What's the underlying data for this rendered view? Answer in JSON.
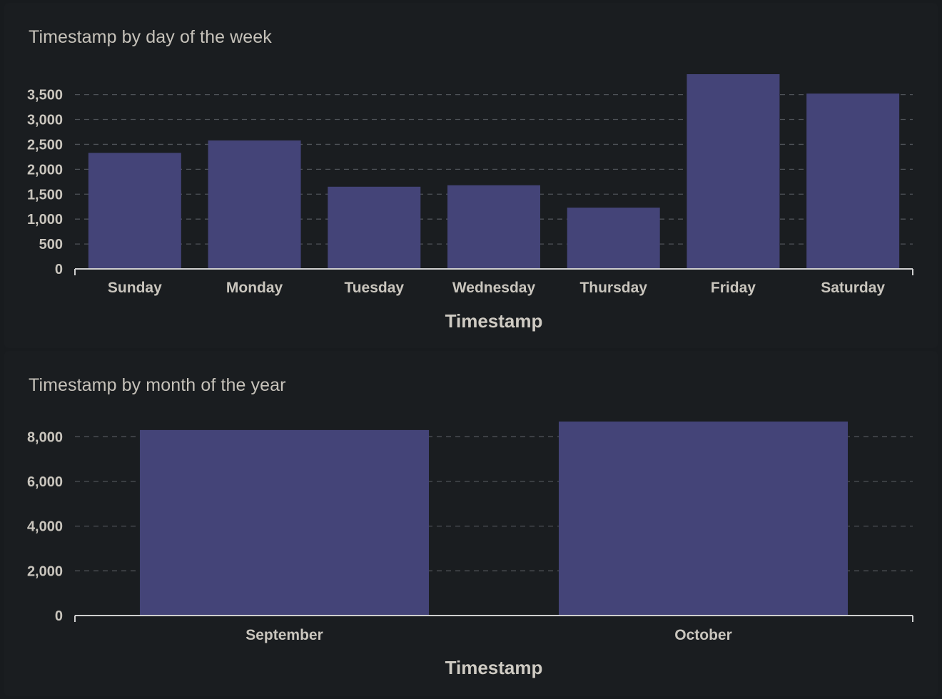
{
  "colors": {
    "background": "#181b1e",
    "card": "#1a1d20",
    "bar": "#444478",
    "grid": "#4e5257",
    "axis": "#cfcfcf",
    "text": "#c9c5bd"
  },
  "chart_data": [
    {
      "type": "bar",
      "title": "Timestamp by day of the week",
      "xlabel": "Timestamp",
      "ylabel": "",
      "categories": [
        "Sunday",
        "Monday",
        "Tuesday",
        "Wednesday",
        "Thursday",
        "Friday",
        "Saturday"
      ],
      "values": [
        2330,
        2580,
        1650,
        1680,
        1230,
        3910,
        3520
      ],
      "yticks": [
        0,
        500,
        1000,
        1500,
        2000,
        2500,
        3000,
        3500
      ],
      "ytick_labels": [
        "0",
        "500",
        "1,000",
        "1,500",
        "2,000",
        "2,500",
        "3,000",
        "3,500"
      ],
      "ylim": [
        0,
        3910
      ],
      "grid": true,
      "legend": "none"
    },
    {
      "type": "bar",
      "title": "Timestamp by month of the year",
      "xlabel": "Timestamp",
      "ylabel": "",
      "categories": [
        "September",
        "October"
      ],
      "values": [
        8300,
        8680
      ],
      "yticks": [
        0,
        2000,
        4000,
        6000,
        8000
      ],
      "ytick_labels": [
        "0",
        "2,000",
        "4,000",
        "6,000",
        "8,000"
      ],
      "ylim": [
        0,
        8680
      ],
      "grid": true,
      "legend": "none"
    }
  ]
}
